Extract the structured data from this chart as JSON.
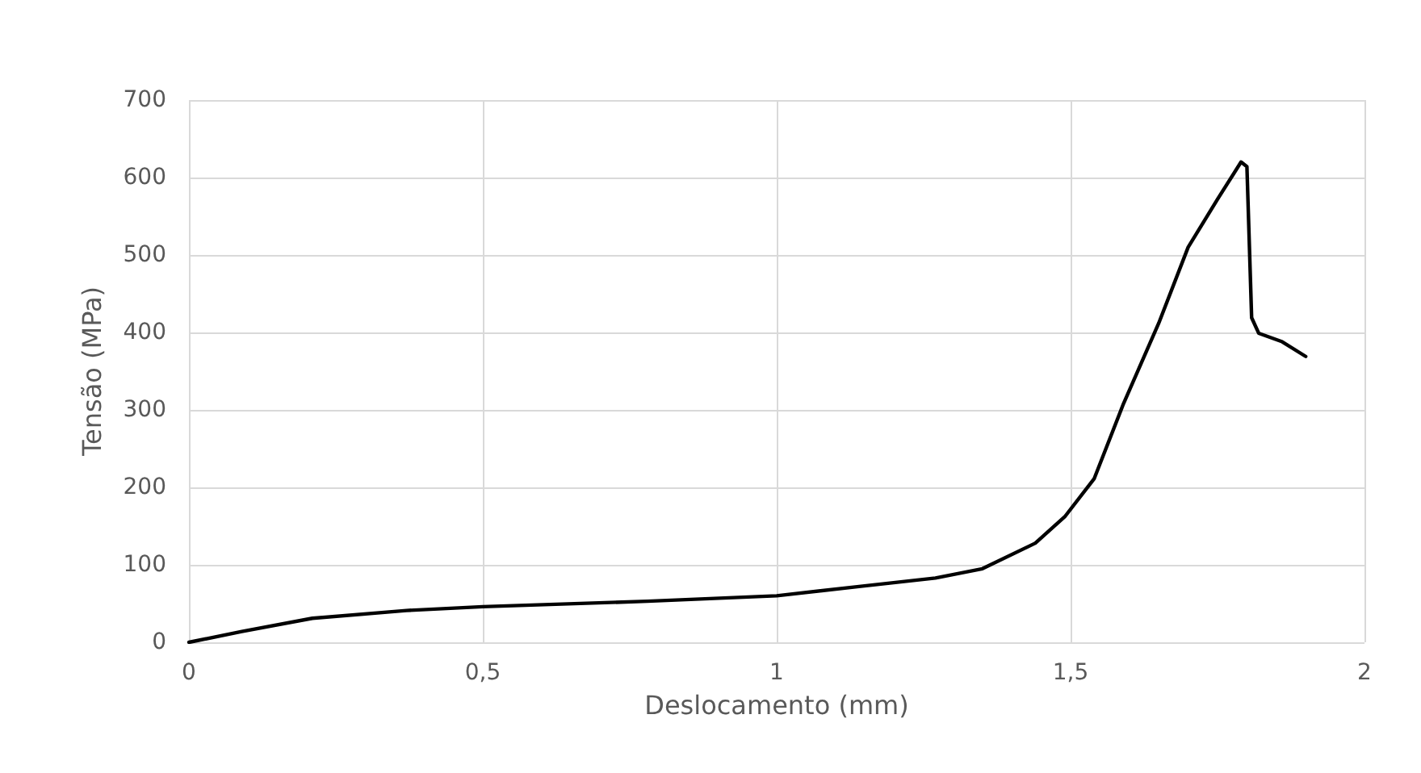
{
  "chart_data": {
    "type": "line",
    "xlabel": "Deslocamento (mm)",
    "ylabel": "Tensão (MPa)",
    "xlim": [
      0,
      2
    ],
    "xticks": [
      0,
      {
        "value": 0.5,
        "label": "0,5"
      },
      1,
      {
        "value": 1.5,
        "label": "1,5"
      },
      2
    ],
    "ylim": [
      0,
      700
    ],
    "yticks": [
      0,
      100,
      200,
      300,
      400,
      500,
      600,
      700
    ],
    "grid": true,
    "marker": "none",
    "line_style": "solid",
    "series": [
      {
        "color": "#000000",
        "x": [
          0,
          0.09,
          0.21,
          0.37,
          0.5,
          0.78,
          1.0,
          1.14,
          1.27,
          1.35,
          1.44,
          1.49,
          1.54,
          1.59,
          1.65,
          1.7,
          1.75,
          1.79,
          1.8,
          1.808,
          1.82,
          1.86,
          1.9
        ],
        "values": [
          0,
          14,
          31,
          41,
          46,
          53,
          60,
          72,
          83,
          95,
          128,
          162,
          211,
          308,
          412,
          510,
          572,
          620,
          614,
          419,
          399,
          388,
          369
        ]
      }
    ]
  }
}
